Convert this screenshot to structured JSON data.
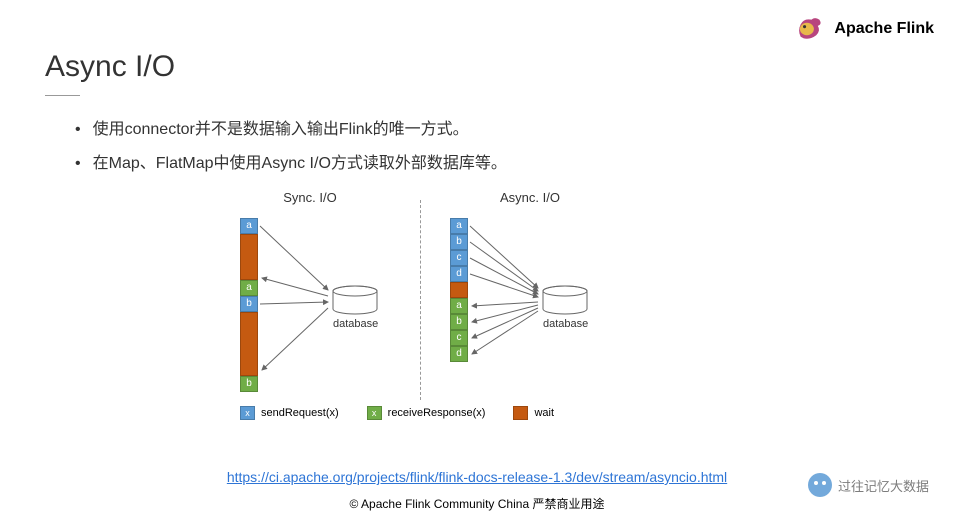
{
  "logo": {
    "text": "Apache Flink"
  },
  "title": "Async I/O",
  "bullets": [
    "使用connector并不是数据输入输出Flink的唯一方式。",
    "在Map、FlatMap中使用Async I/O方式读取外部数据库等。"
  ],
  "diagram": {
    "sync": {
      "title": "Sync. I/O",
      "blocks": [
        {
          "label": "a",
          "type": "blue",
          "h": 16
        },
        {
          "label": "",
          "type": "wait",
          "h": 46
        },
        {
          "label": "a",
          "type": "green",
          "h": 16
        },
        {
          "label": "b",
          "type": "blue",
          "h": 16
        },
        {
          "label": "",
          "type": "wait",
          "h": 64
        },
        {
          "label": "b",
          "type": "green",
          "h": 16
        }
      ],
      "db_label": "database"
    },
    "async": {
      "title": "Async. I/O",
      "blocks": [
        {
          "label": "a",
          "type": "blue",
          "h": 16
        },
        {
          "label": "b",
          "type": "blue",
          "h": 16
        },
        {
          "label": "c",
          "type": "blue",
          "h": 16
        },
        {
          "label": "d",
          "type": "blue",
          "h": 16
        },
        {
          "label": "",
          "type": "wait",
          "h": 16
        },
        {
          "label": "a",
          "type": "green",
          "h": 16
        },
        {
          "label": "b",
          "type": "green",
          "h": 16
        },
        {
          "label": "c",
          "type": "green",
          "h": 16
        },
        {
          "label": "d",
          "type": "green",
          "h": 16
        }
      ],
      "db_label": "database"
    },
    "legend": {
      "send": {
        "color": "#5b9bd5",
        "glyph": "x",
        "label": "sendRequest(x)"
      },
      "recv": {
        "color": "#70ad47",
        "glyph": "x",
        "label": "receiveResponse(x)"
      },
      "wait": {
        "color": "#c55a11",
        "glyph": "",
        "label": "wait"
      }
    },
    "colors": {
      "blue": "#5b9bd5",
      "green": "#70ad47",
      "wait": "#c55a11",
      "arrow": "#666666",
      "db_stroke": "#666666"
    }
  },
  "link": {
    "text": "https://ci.apache.org/projects/flink/flink-docs-release-1.3/dev/stream/asyncio.html",
    "href": "https://ci.apache.org/projects/flink/flink-docs-release-1.3/dev/stream/asyncio.html"
  },
  "copyright": "© Apache Flink Community China  严禁商业用途",
  "watermark": "过往记忆大数据"
}
